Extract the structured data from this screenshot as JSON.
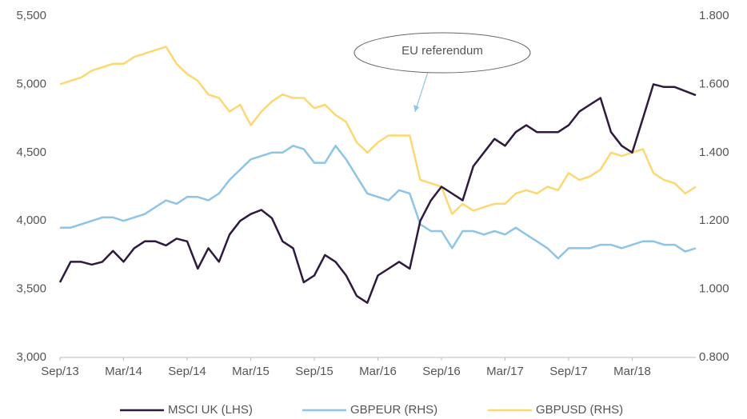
{
  "chart_data": {
    "type": "line",
    "categories": [
      "Sep/13",
      null,
      null,
      null,
      null,
      null,
      "Mar/14",
      null,
      null,
      null,
      null,
      null,
      "Sep/14",
      null,
      null,
      null,
      null,
      null,
      "Mar/15",
      null,
      null,
      null,
      null,
      null,
      "Sep/15",
      null,
      null,
      null,
      null,
      null,
      "Mar/16",
      null,
      null,
      null,
      null,
      null,
      "Sep/16",
      null,
      null,
      null,
      null,
      null,
      "Mar/17",
      null,
      null,
      null,
      null,
      null,
      "Sep/17",
      null,
      null,
      null,
      null,
      null,
      "Mar/18",
      null,
      null,
      null,
      null,
      null,
      null
    ],
    "series": [
      {
        "name": "MSCI UK (LHS)",
        "color": "#2e1a3e",
        "axis": "y",
        "values": [
          3550,
          3700,
          3700,
          3680,
          3700,
          3780,
          3700,
          3800,
          3850,
          3850,
          3820,
          3870,
          3850,
          3650,
          3800,
          3700,
          3900,
          4000,
          4050,
          4080,
          4020,
          3850,
          3800,
          3550,
          3600,
          3750,
          3700,
          3600,
          3450,
          3400,
          3600,
          3650,
          3700,
          3650,
          4000,
          4150,
          4250,
          4200,
          4150,
          4400,
          4500,
          4600,
          4550,
          4650,
          4700,
          4650,
          4650,
          4650,
          4700,
          4800,
          4850,
          4900,
          4650,
          4550,
          4500,
          4750,
          5000,
          4980,
          4980,
          4950,
          4920
        ]
      },
      {
        "name": "GBPEUR (RHS)",
        "color": "#8ec4e6",
        "axis": "y2",
        "values": [
          1.18,
          1.18,
          1.19,
          1.2,
          1.21,
          1.21,
          1.2,
          1.21,
          1.22,
          1.24,
          1.26,
          1.25,
          1.27,
          1.27,
          1.26,
          1.28,
          1.32,
          1.35,
          1.38,
          1.39,
          1.4,
          1.4,
          1.42,
          1.41,
          1.37,
          1.37,
          1.42,
          1.38,
          1.33,
          1.28,
          1.27,
          1.26,
          1.29,
          1.28,
          1.19,
          1.17,
          1.17,
          1.12,
          1.17,
          1.17,
          1.16,
          1.17,
          1.16,
          1.18,
          1.16,
          1.14,
          1.12,
          1.09,
          1.12,
          1.12,
          1.12,
          1.13,
          1.13,
          1.12,
          1.13,
          1.14,
          1.14,
          1.13,
          1.13,
          1.11,
          1.12
        ]
      },
      {
        "name": "GBPUSD (RHS)",
        "color": "#fcd872",
        "axis": "y2",
        "values": [
          1.6,
          1.61,
          1.62,
          1.64,
          1.65,
          1.66,
          1.66,
          1.68,
          1.69,
          1.7,
          1.71,
          1.66,
          1.63,
          1.61,
          1.57,
          1.56,
          1.52,
          1.54,
          1.48,
          1.52,
          1.55,
          1.57,
          1.56,
          1.56,
          1.53,
          1.54,
          1.51,
          1.49,
          1.43,
          1.4,
          1.43,
          1.45,
          1.45,
          1.45,
          1.32,
          1.31,
          1.3,
          1.22,
          1.25,
          1.23,
          1.24,
          1.25,
          1.25,
          1.28,
          1.29,
          1.28,
          1.3,
          1.29,
          1.34,
          1.32,
          1.33,
          1.35,
          1.4,
          1.39,
          1.4,
          1.41,
          1.34,
          1.32,
          1.31,
          1.28,
          1.3
        ]
      }
    ],
    "ylim": [
      3000,
      5500
    ],
    "yticks": [
      {
        "value": 3000,
        "label": "3,000"
      },
      {
        "value": 3500,
        "label": "3,500"
      },
      {
        "value": 4000,
        "label": "4,000"
      },
      {
        "value": 4500,
        "label": "4,500"
      },
      {
        "value": 5000,
        "label": "5,000"
      },
      {
        "value": 5500,
        "label": "5,500"
      }
    ],
    "y2lim": [
      0.8,
      1.8
    ],
    "y2ticks": [
      {
        "value": 0.8,
        "label": "0.800"
      },
      {
        "value": 1.0,
        "label": "1.000"
      },
      {
        "value": 1.2,
        "label": "1.200"
      },
      {
        "value": 1.4,
        "label": "1.400"
      },
      {
        "value": 1.6,
        "label": "1.600"
      },
      {
        "value": 1.8,
        "label": "1.800"
      }
    ],
    "annotation": "EU referendum",
    "grid": false,
    "legend": "bottom"
  }
}
